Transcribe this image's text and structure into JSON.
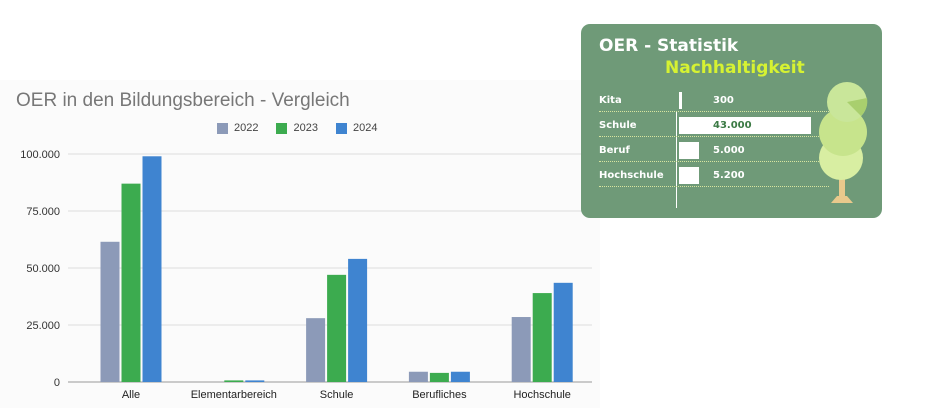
{
  "chart_data": [
    {
      "type": "bar",
      "title": "OER in den Bildungsbereich - Vergleich",
      "categories": [
        "Alle",
        "Elementarbereich",
        "Schule",
        "Berufliches",
        "Hochschule"
      ],
      "series": [
        {
          "name": "2022",
          "color": "#8c9ab8",
          "values": [
            61500,
            0,
            28000,
            4500,
            28500
          ]
        },
        {
          "name": "2023",
          "color": "#3cab4f",
          "values": [
            87000,
            700,
            47000,
            4000,
            39000
          ]
        },
        {
          "name": "2024",
          "color": "#3f84d0",
          "values": [
            99000,
            700,
            54000,
            4500,
            43500
          ]
        }
      ],
      "ylim": [
        0,
        100000
      ],
      "yticks": [
        0,
        25000,
        50000,
        75000,
        100000
      ],
      "ytick_labels": [
        "0",
        "25.000",
        "50.000",
        "75.000",
        "100.000"
      ],
      "grid": true,
      "legend": "top"
    },
    {
      "type": "bar",
      "title": "OER - Statistik",
      "subtitle": "Nachhaltigkeit",
      "categories": [
        "Kita",
        "Schule",
        "Beruf",
        "Hochschule"
      ],
      "values": [
        300,
        43000,
        5000,
        5200
      ],
      "value_labels": [
        "300",
        "43.000",
        "5.000",
        "5.200"
      ],
      "orientation": "horizontal"
    }
  ],
  "colors": {
    "card_background": "#6f9a78",
    "card_subtitle": "#d6f232"
  },
  "decoration": {
    "card_icon": "tree-icon"
  }
}
